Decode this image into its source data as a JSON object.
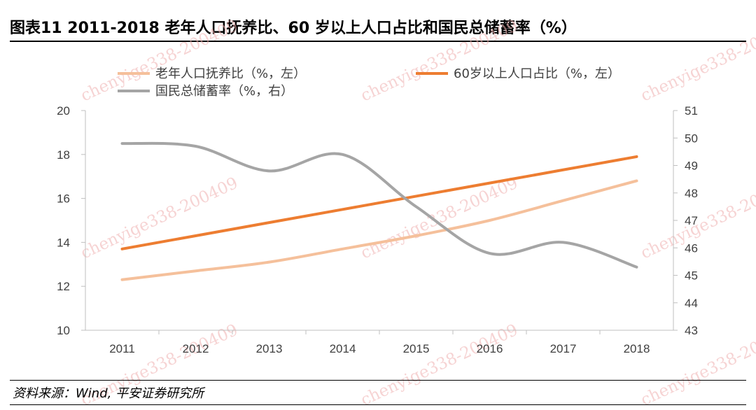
{
  "header": {
    "title": "图表11    2011-2018 老年人口抚养比、60 岁以上人口占比和国民总储蓄率（%）"
  },
  "footer": {
    "source": "资料来源：Wind, 平安证券研究所"
  },
  "watermark": "chenyige338-200409",
  "chart_data": {
    "type": "line",
    "title": "2011-2018 老年人口抚养比、60 岁以上人口占比和国民总储蓄率（%）",
    "categories": [
      "2011",
      "2012",
      "2013",
      "2014",
      "2015",
      "2016",
      "2017",
      "2018"
    ],
    "y_left": {
      "min": 10,
      "max": 20,
      "ticks": [
        10,
        12,
        14,
        16,
        18,
        20
      ]
    },
    "y_right": {
      "min": 43,
      "max": 51,
      "ticks": [
        43,
        44,
        45,
        46,
        47,
        48,
        49,
        50,
        51
      ]
    },
    "legend_position": "top",
    "series": [
      {
        "name": "老年人口抚养比（%，左）",
        "axis": "left",
        "color": "#f5c09b",
        "values": [
          12.3,
          12.7,
          13.1,
          13.7,
          14.3,
          15.0,
          15.9,
          16.8
        ]
      },
      {
        "name": "60岁以上人口占比（%，左）",
        "axis": "left",
        "color": "#ed7d31",
        "values": [
          13.7,
          14.3,
          14.9,
          15.5,
          16.1,
          16.7,
          17.3,
          17.9
        ]
      },
      {
        "name": "国民总储蓄率（%，右）",
        "axis": "right",
        "color": "#a5a5a5",
        "values": [
          49.8,
          49.7,
          48.8,
          49.4,
          47.5,
          45.8,
          46.2,
          45.3
        ]
      }
    ]
  }
}
